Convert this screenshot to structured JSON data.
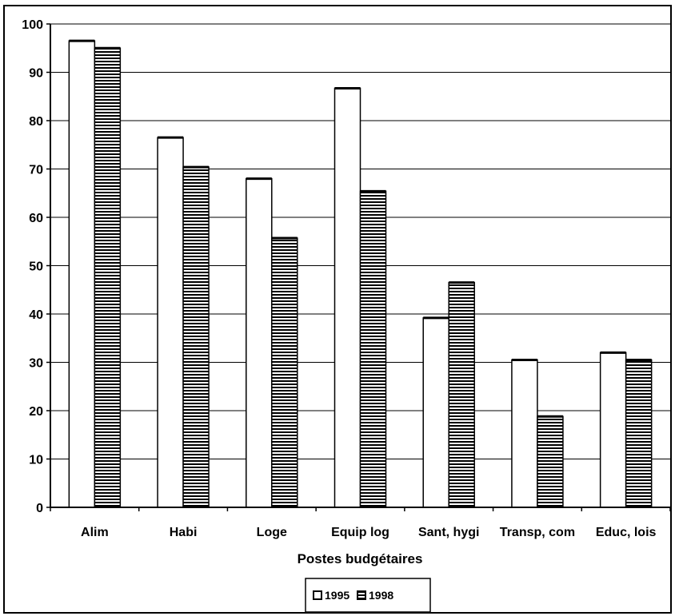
{
  "chart_data": {
    "type": "bar",
    "xlabel": "Postes budgétaires",
    "ylabel": "",
    "ylim": [
      0,
      100
    ],
    "yticks": [
      0,
      10,
      20,
      30,
      40,
      50,
      60,
      70,
      80,
      90,
      100
    ],
    "grid": true,
    "legend_position": "bottom",
    "categories": [
      "Alim",
      "Habi",
      "Loge",
      "Equip log",
      "Sant, hygi",
      "Transp, com",
      "Educ, lois"
    ],
    "series": [
      {
        "name": "1995",
        "pattern": "white",
        "values": [
          96.5,
          76.5,
          68,
          86.7,
          39.2,
          30.5,
          32
        ]
      },
      {
        "name": "1998",
        "pattern": "horizontal-stripes",
        "values": [
          95,
          70.4,
          55.7,
          65.4,
          46.5,
          18.8,
          30.5
        ]
      }
    ],
    "colors": {
      "bar_fill": "#ffffff",
      "stripe": "#000000",
      "grid": "#000000"
    }
  }
}
